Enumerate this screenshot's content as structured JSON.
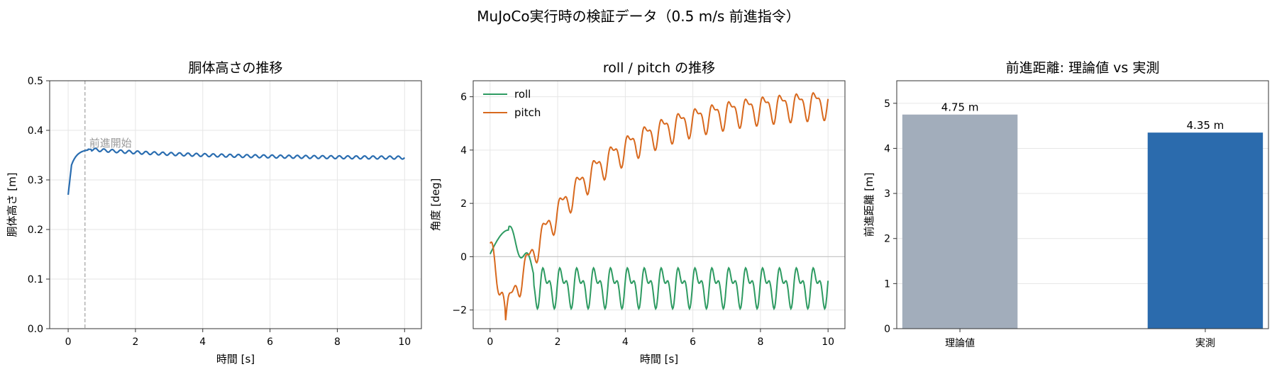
{
  "figure_title": "MuJoCo実行時の検証データ（0.5 m/s 前進指令）",
  "colors": {
    "height_line": "#2a6db0",
    "roll": "#2e9b62",
    "pitch": "#d8691e",
    "bar_theory": "#a2adbb",
    "bar_measured": "#2b6bad",
    "grid": "#e6e6e6",
    "vline": "#a0a0a0",
    "zero_line": "#c8c8c8"
  },
  "chart_data": [
    {
      "type": "line",
      "title": "胴体高さの推移",
      "xlabel": "時間 [s]",
      "ylabel": "胴体高さ [m]",
      "xlim": [
        -0.55,
        10.5
      ],
      "ylim": [
        0.0,
        0.5
      ],
      "xticks": [
        0,
        2,
        4,
        6,
        8,
        10
      ],
      "yticks": [
        0.0,
        0.1,
        0.2,
        0.3,
        0.4,
        0.5
      ],
      "ytick_labels": [
        "0.0",
        "0.1",
        "0.2",
        "0.3",
        "0.4",
        "0.5"
      ],
      "grid": true,
      "annotation": {
        "text": "前進開始",
        "x": 0.5
      },
      "series": [
        {
          "model": "height",
          "start": 0.27,
          "rise_end": 0.33,
          "peak": 0.362,
          "final": 0.344,
          "ripple": 0.003,
          "period": 0.25
        }
      ]
    },
    {
      "type": "line",
      "title": "roll / pitch の推移",
      "xlabel": "時間 [s]",
      "ylabel": "角度 [deg]",
      "xlim": [
        -0.5,
        10.5
      ],
      "ylim": [
        -2.7,
        6.6
      ],
      "xticks": [
        0,
        2,
        4,
        6,
        8,
        10
      ],
      "yticks": [
        -2,
        0,
        2,
        4,
        6
      ],
      "ytick_labels": [
        "−2",
        "0",
        "2",
        "4",
        "6"
      ],
      "grid": true,
      "legend": "top-left",
      "series": [
        {
          "name": "roll",
          "model": "roll",
          "mean": -1.1,
          "amp": 0.55,
          "period": 0.5
        },
        {
          "name": "pitch",
          "model": "pitch",
          "min": -2.2,
          "min_t": 0.45,
          "asymptote": 5.9,
          "amp": 0.45,
          "period": 0.5
        }
      ]
    },
    {
      "type": "bar",
      "title": "前進距離: 理論値 vs 実測",
      "xlabel": "",
      "ylabel": "前進距離 [m]",
      "categories": [
        "理論値",
        "実測"
      ],
      "values": [
        4.75,
        4.35
      ],
      "value_labels": [
        "4.75 m",
        "4.35 m"
      ],
      "ylim": [
        0,
        5.5
      ],
      "yticks": [
        0,
        1,
        2,
        3,
        4,
        5
      ],
      "ytick_labels": [
        "0",
        "1",
        "2",
        "3",
        "4",
        "5"
      ],
      "grid": true
    }
  ]
}
